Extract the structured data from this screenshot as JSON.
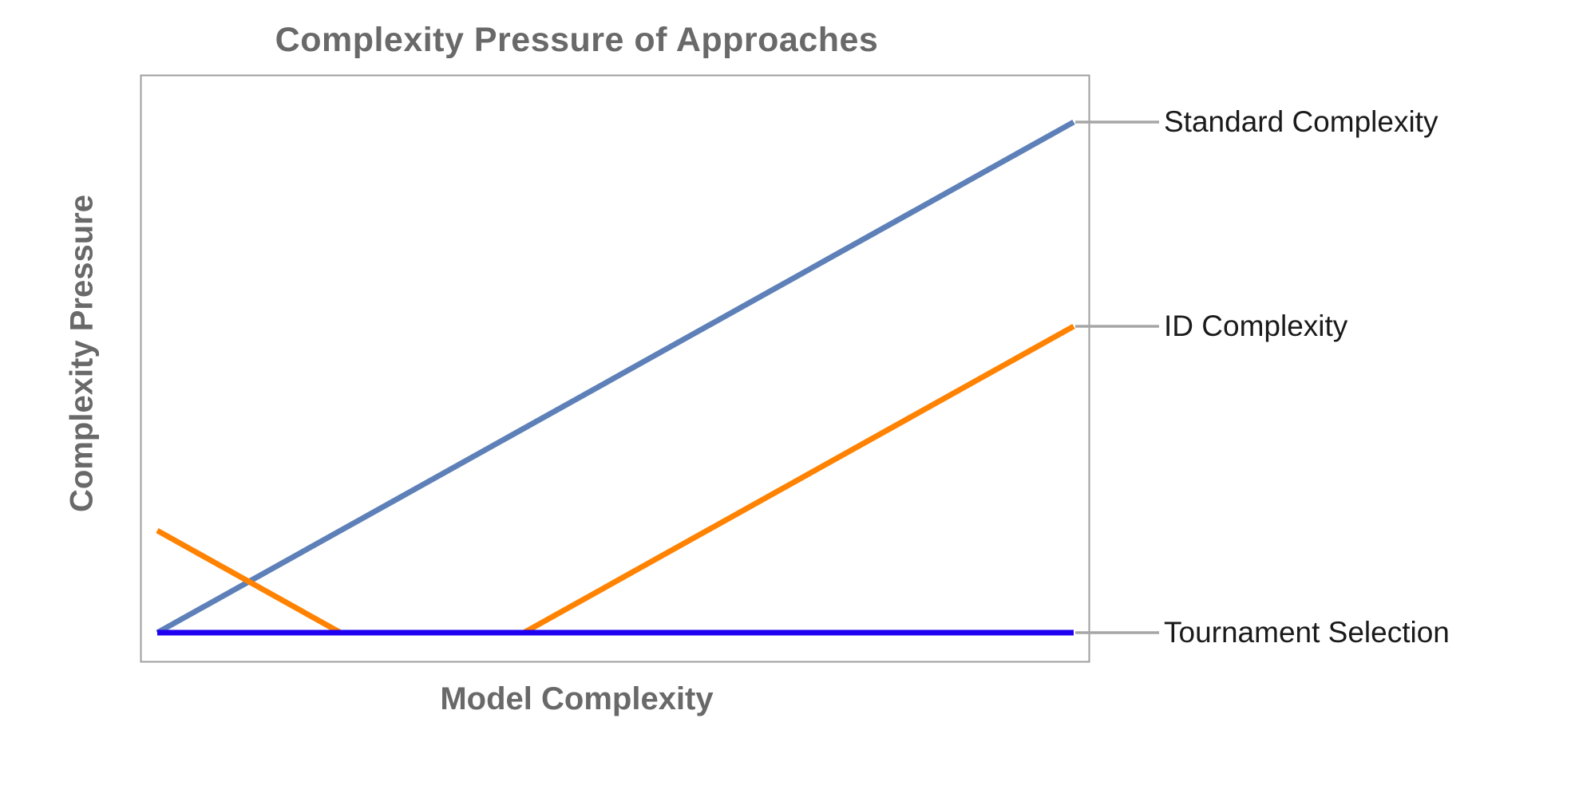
{
  "chart_data": {
    "type": "line",
    "title": "Complexity Pressure of Approaches",
    "xlabel": "Model Complexity",
    "ylabel": "Complexity Pressure",
    "x_range": [
      0,
      10
    ],
    "y_range": [
      0,
      10
    ],
    "grid": false,
    "tick_labels_visible": false,
    "legend_position": "right-edge-callout-labels",
    "series": [
      {
        "name": "Standard Complexity",
        "color": "#5E80B8",
        "points": [
          [
            0,
            0
          ],
          [
            10,
            10
          ]
        ]
      },
      {
        "name": "ID Complexity",
        "color": "#FF8200",
        "points": [
          [
            0,
            2
          ],
          [
            2,
            0
          ],
          [
            4,
            0
          ],
          [
            10,
            6
          ]
        ]
      },
      {
        "name": "Tournament Selection",
        "color": "#2000F0",
        "points": [
          [
            0,
            0
          ],
          [
            10,
            0
          ]
        ]
      }
    ]
  },
  "colors": {
    "title_text": "#696969",
    "axis_label_text": "#696969",
    "plot_border": "#9E9E9E",
    "leader_line": "#A6A6A6",
    "series_label_text": "#1A1A1A",
    "background": "#FFFFFF"
  }
}
